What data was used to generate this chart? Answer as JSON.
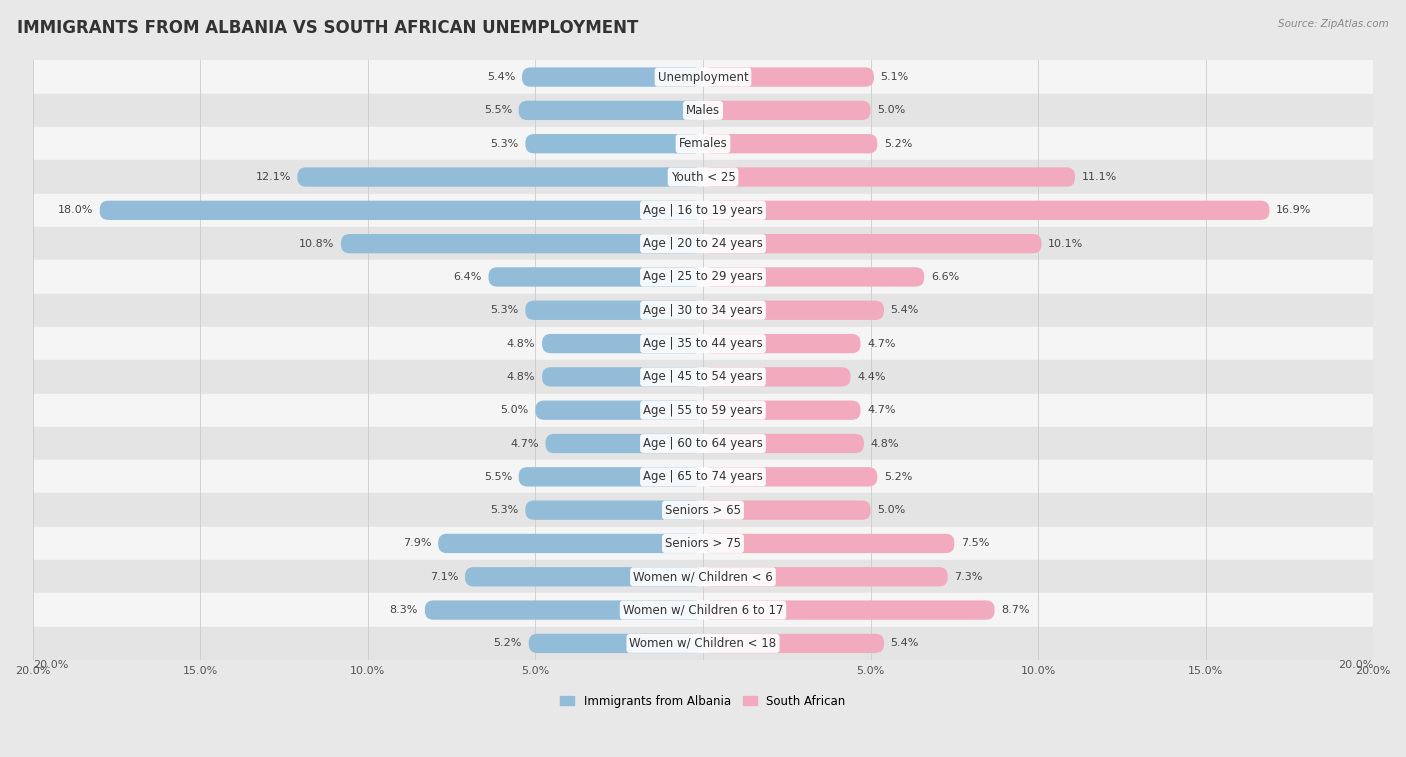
{
  "title": "IMMIGRANTS FROM ALBANIA VS SOUTH AFRICAN UNEMPLOYMENT",
  "source": "Source: ZipAtlas.com",
  "categories": [
    "Unemployment",
    "Males",
    "Females",
    "Youth < 25",
    "Age | 16 to 19 years",
    "Age | 20 to 24 years",
    "Age | 25 to 29 years",
    "Age | 30 to 34 years",
    "Age | 35 to 44 years",
    "Age | 45 to 54 years",
    "Age | 55 to 59 years",
    "Age | 60 to 64 years",
    "Age | 65 to 74 years",
    "Seniors > 65",
    "Seniors > 75",
    "Women w/ Children < 6",
    "Women w/ Children 6 to 17",
    "Women w/ Children < 18"
  ],
  "albania_values": [
    5.4,
    5.5,
    5.3,
    12.1,
    18.0,
    10.8,
    6.4,
    5.3,
    4.8,
    4.8,
    5.0,
    4.7,
    5.5,
    5.3,
    7.9,
    7.1,
    8.3,
    5.2
  ],
  "southafrican_values": [
    5.1,
    5.0,
    5.2,
    11.1,
    16.9,
    10.1,
    6.6,
    5.4,
    4.7,
    4.4,
    4.7,
    4.8,
    5.2,
    5.0,
    7.5,
    7.3,
    8.7,
    5.4
  ],
  "albania_color": "#92bcd8",
  "southafrican_color": "#f2aabe",
  "bar_height": 0.58,
  "xlim": 20.0,
  "background_color": "#e8e8e8",
  "row_bg_light": "#f5f5f5",
  "row_bg_dark": "#e4e4e4",
  "title_fontsize": 12,
  "label_fontsize": 8.5,
  "value_fontsize": 8.0,
  "source_fontsize": 7.5,
  "legend_fontsize": 8.5
}
